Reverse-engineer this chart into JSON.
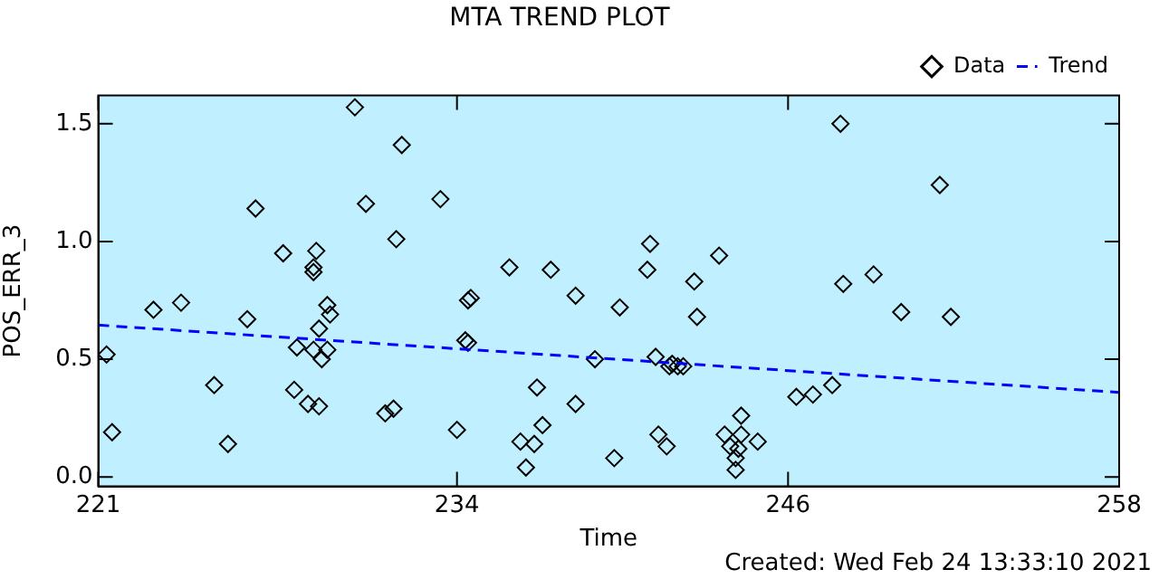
{
  "chart_data": {
    "type": "scatter",
    "title": "MTA TREND PLOT",
    "xlabel": "Time",
    "ylabel": "POS_ERR_3",
    "xlim": [
      221,
      258
    ],
    "xticks": [
      221,
      234,
      246,
      258
    ],
    "ylim": [
      -0.04,
      1.62
    ],
    "yticks": [
      {
        "value": 0,
        "label": "0.0"
      },
      {
        "value": 0.5,
        "label": "0.5"
      },
      {
        "value": 1,
        "label": "1.0"
      },
      {
        "value": 1.5,
        "label": "1.5"
      }
    ],
    "grid": false,
    "legend": "top right",
    "annotations": [
      "Created: Wed Feb 24 13:33:10 2021"
    ],
    "series": [
      {
        "name": "Data",
        "marker": "diamond",
        "color": "#000000",
        "x": [
          230.3,
          232.0,
          226.7,
          230.7,
          233.4,
          231.8,
          227.7,
          228.9,
          228.8,
          228.8,
          223.0,
          224.0,
          226.4,
          229.3,
          229.4,
          229.0,
          221.3,
          228.2,
          228.8,
          229.3,
          229.1,
          225.2,
          228.1,
          228.6,
          229.0,
          231.4,
          231.7,
          221.5,
          225.7,
          241.0,
          235.9,
          237.4,
          240.9,
          243.5,
          242.6,
          234.5,
          234.4,
          238.3,
          239.9,
          242.7,
          234.3,
          234.4,
          239.0,
          241.2,
          241.8,
          242.0,
          242.2,
          241.7,
          236.9,
          238.3,
          246.3,
          234.0,
          237.1,
          236.3,
          236.8,
          236.5,
          239.7,
          241.3,
          241.6,
          244.3,
          243.7,
          244.3,
          243.9,
          244.2,
          244.1,
          244.1,
          244.9,
          247.9,
          251.5,
          248.0,
          249.1,
          250.1,
          251.9,
          246.9,
          247.6
        ],
        "values": [
          1.57,
          1.41,
          1.14,
          1.16,
          1.18,
          1.01,
          0.95,
          0.96,
          0.87,
          0.89,
          0.71,
          0.74,
          0.67,
          0.73,
          0.69,
          0.63,
          0.52,
          0.55,
          0.54,
          0.54,
          0.5,
          0.39,
          0.37,
          0.31,
          0.3,
          0.27,
          0.29,
          0.19,
          0.14,
          0.99,
          0.89,
          0.88,
          0.88,
          0.94,
          0.83,
          0.76,
          0.75,
          0.77,
          0.72,
          0.68,
          0.58,
          0.57,
          0.5,
          0.51,
          0.48,
          0.47,
          0.47,
          0.47,
          0.38,
          0.31,
          0.34,
          0.2,
          0.22,
          0.15,
          0.14,
          0.04,
          0.08,
          0.18,
          0.13,
          0.26,
          0.18,
          0.18,
          0.13,
          0.12,
          0.08,
          0.03,
          0.15,
          1.5,
          1.24,
          0.82,
          0.86,
          0.7,
          0.68,
          0.35,
          0.39
        ]
      },
      {
        "name": "Trend",
        "type": "line",
        "marker": "none",
        "line_style": "dashed",
        "color": "#0000ff",
        "x": [
          221,
          258
        ],
        "values": [
          0.645,
          0.359
        ]
      }
    ]
  }
}
